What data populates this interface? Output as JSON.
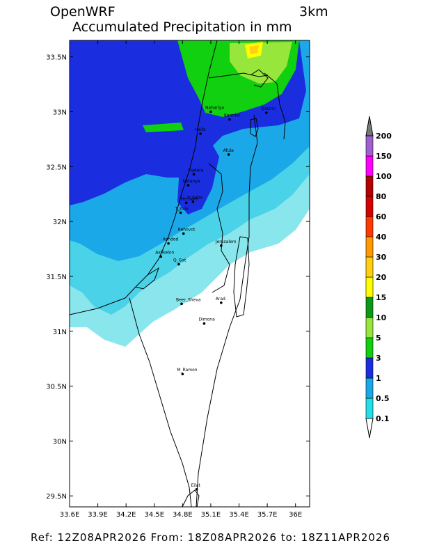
{
  "header": {
    "model": "OpenWRF",
    "resolution": "3km",
    "title": "Accumulated Precipitation in mm"
  },
  "footer": {
    "text": "Ref: 12Z08APR2026  From: 18Z08APR2026  to: 18Z11APR2026"
  },
  "map": {
    "lon_range": [
      33.6,
      36.15
    ],
    "lat_range": [
      29.4,
      33.65
    ],
    "lon_ticks": [
      "33.6E",
      "33.9E",
      "34.2E",
      "34.5E",
      "34.8E",
      "35.1E",
      "35.4E",
      "35.7E",
      "36E"
    ],
    "lon_tick_values": [
      33.6,
      33.9,
      34.2,
      34.5,
      34.8,
      35.1,
      35.4,
      35.7,
      36.0
    ],
    "lat_ticks": [
      "33.5N",
      "33N",
      "32.5N",
      "32N",
      "31.5N",
      "31N",
      "30.5N",
      "30N",
      "29.5N"
    ],
    "lat_tick_values": [
      33.5,
      33.0,
      32.5,
      32.0,
      31.5,
      31.0,
      30.5,
      30.0,
      29.5
    ],
    "cities": [
      {
        "name": "Nahariya",
        "lon": 35.1,
        "lat": 33.0
      },
      {
        "name": "Karmiel",
        "lon": 35.3,
        "lat": 32.93
      },
      {
        "name": "Qatzrin",
        "lon": 35.69,
        "lat": 32.99
      },
      {
        "name": "Haifa",
        "lon": 34.99,
        "lat": 32.8
      },
      {
        "name": "Afula",
        "lon": 35.29,
        "lat": 32.61
      },
      {
        "name": "Hadera",
        "lon": 34.92,
        "lat": 32.43
      },
      {
        "name": "Netanya",
        "lon": 34.86,
        "lat": 32.33
      },
      {
        "name": "Herzliya",
        "lon": 34.84,
        "lat": 32.17
      },
      {
        "name": "K_Saba",
        "lon": 34.91,
        "lat": 32.18
      },
      {
        "name": "T_Aviv",
        "lon": 34.78,
        "lat": 32.08
      },
      {
        "name": "Rehovot",
        "lon": 34.81,
        "lat": 31.89
      },
      {
        "name": "Ashdod",
        "lon": 34.65,
        "lat": 31.8
      },
      {
        "name": "Jerusalem",
        "lon": 35.21,
        "lat": 31.78
      },
      {
        "name": "Ashkelon",
        "lon": 34.57,
        "lat": 31.68
      },
      {
        "name": "Q_Gat",
        "lon": 34.76,
        "lat": 31.61
      },
      {
        "name": "Beer_Sheva",
        "lon": 34.79,
        "lat": 31.25
      },
      {
        "name": "Arad",
        "lon": 35.21,
        "lat": 31.26
      },
      {
        "name": "Dimona",
        "lon": 35.03,
        "lat": 31.07
      },
      {
        "name": "M_Ramon",
        "lon": 34.8,
        "lat": 30.61
      },
      {
        "name": "Eilat",
        "lon": 34.95,
        "lat": 29.56
      }
    ]
  },
  "colorbar": {
    "labels": [
      "0.1",
      "0.5",
      "1",
      "3",
      "5",
      "10",
      "15",
      "20",
      "30",
      "40",
      "60",
      "80",
      "100",
      "150",
      "200"
    ],
    "colors": [
      "#22e0e6",
      "#1aa8e8",
      "#1a2ee0",
      "#10d010",
      "#96e63c",
      "#0a9a18",
      "#ffff00",
      "#ffd010",
      "#ff9a00",
      "#ff3a00",
      "#d60000",
      "#b40000",
      "#ff00ff",
      "#a060d0",
      "#787878"
    ]
  },
  "colors": {
    "c01": "#88e6ec",
    "c05": "#4ad2e8",
    "c1": "#1aa8e8",
    "c3": "#1a2ee0",
    "c5": "#10d010",
    "c10": "#96e63c",
    "c15": "#ffff00",
    "c20": "#ffd010"
  }
}
